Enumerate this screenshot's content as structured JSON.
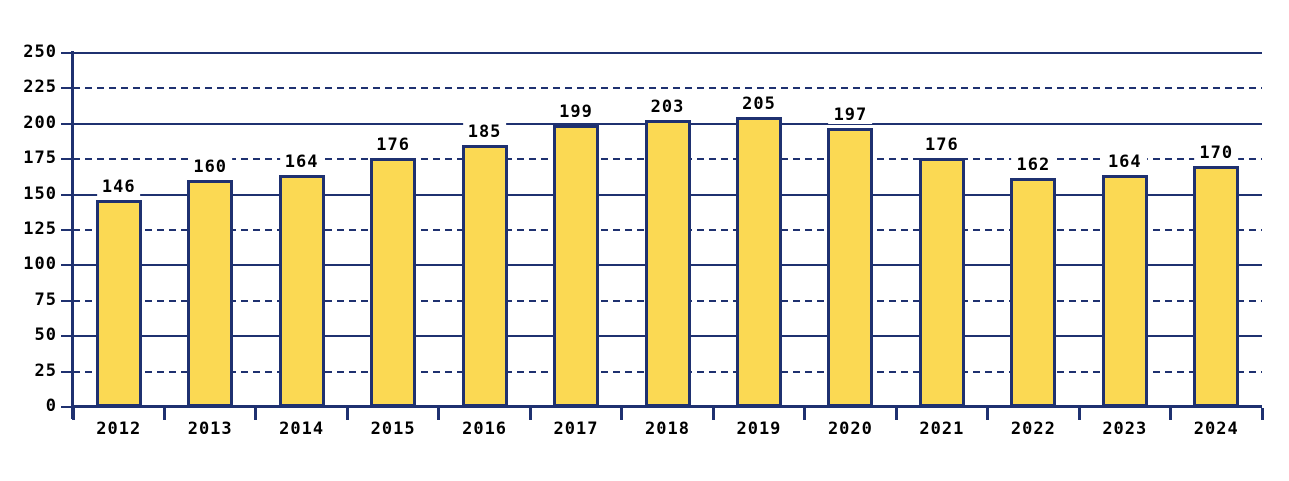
{
  "chart_data": {
    "type": "bar",
    "title": "",
    "xlabel": "",
    "ylabel": "",
    "categories": [
      "2012",
      "2013",
      "2014",
      "2015",
      "2016",
      "2017",
      "2018",
      "2019",
      "2020",
      "2021",
      "2022",
      "2023",
      "2024"
    ],
    "values": [
      146,
      160,
      164,
      176,
      185,
      199,
      203,
      205,
      197,
      176,
      162,
      164,
      170
    ],
    "value_labels": [
      "146",
      "160",
      "164",
      "176",
      "185",
      "199",
      "203",
      "205",
      "197",
      "176",
      "162",
      "164",
      "170"
    ],
    "ylim": [
      0,
      250
    ],
    "ytick_step": 25,
    "ytick_labels": [
      "0",
      "25",
      "50",
      "75",
      "100",
      "125",
      "150",
      "175",
      "200",
      "225",
      "250"
    ],
    "gridlines": {
      "solid_at": [
        50,
        100,
        150,
        200,
        250
      ],
      "dashed_at": [
        25,
        75,
        125,
        175,
        225
      ]
    },
    "legend": "none",
    "colors": {
      "bar_fill": "#FBD953",
      "bar_border": "#1F3170",
      "axis": "#1F3170",
      "gridline": "#1F3170",
      "text": "#000000",
      "background": "#FFFFFF",
      "value_label_background": "#FFFFFF"
    }
  }
}
